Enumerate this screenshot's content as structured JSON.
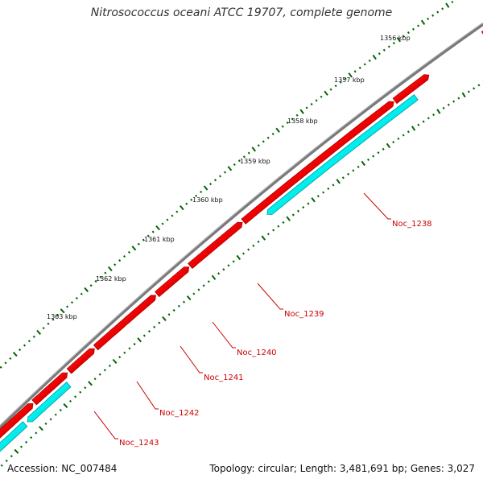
{
  "title": "Nitrosococcus oceani ATCC 19707, complete genome",
  "accession": "Accession: NC_007484",
  "summary": "Topology: circular; Length: 3,481,691 bp; Genes: 3,027",
  "ruler": {
    "unit": "kbp",
    "ticks": [
      "1356 kbp",
      "1357 kbp",
      "1358 kbp",
      "1359 kbp",
      "1360 kbp",
      "1361 kbp",
      "1362 kbp",
      "1363 kbp"
    ]
  },
  "gene_labels": [
    "Noc_1238",
    "Noc_1239",
    "Noc_1240",
    "Noc_1241",
    "Noc_1242",
    "Noc_1243"
  ],
  "colors": {
    "backbone": "#808080",
    "forward_gene": "#ff0000",
    "reverse_gene": "#00ffff",
    "tick": "#006400",
    "label": "#cc0000"
  }
}
